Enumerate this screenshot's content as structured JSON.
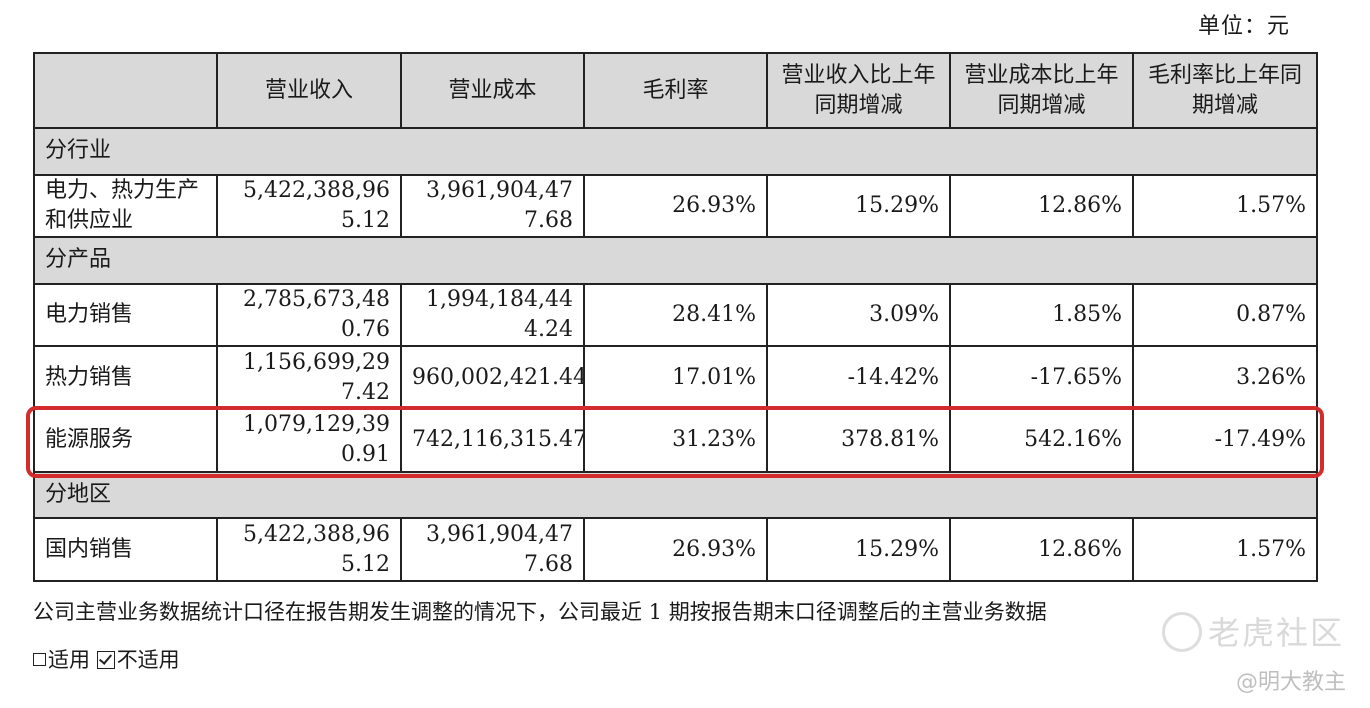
{
  "unit_label": "单位：元",
  "table": {
    "headers": [
      "",
      "营业收入",
      "营业成本",
      "毛利率",
      "营业收入比上年同期增减",
      "营业成本比上年同期增减",
      "毛利率比上年同期增减"
    ],
    "sections": [
      {
        "title": "分行业",
        "rows": [
          {
            "name": "电力、热力生产和供应业",
            "revenue": "5,422,388,965.12",
            "cost": "3,961,904,477.68",
            "margin": "26.93%",
            "rev_change": "15.29%",
            "cost_change": "12.86%",
            "margin_change": "1.57%"
          }
        ]
      },
      {
        "title": "分产品",
        "rows": [
          {
            "name": "电力销售",
            "revenue": "2,785,673,480.76",
            "cost": "1,994,184,444.24",
            "margin": "28.41%",
            "rev_change": "3.09%",
            "cost_change": "1.85%",
            "margin_change": "0.87%"
          },
          {
            "name": "热力销售",
            "revenue": "1,156,699,297.42",
            "cost": "960,002,421.44",
            "margin": "17.01%",
            "rev_change": "-14.42%",
            "cost_change": "-17.65%",
            "margin_change": "3.26%"
          },
          {
            "name": "能源服务",
            "revenue": "1,079,129,390.91",
            "cost": "742,116,315.47",
            "margin": "31.23%",
            "rev_change": "378.81%",
            "cost_change": "542.16%",
            "margin_change": "-17.49%"
          }
        ]
      },
      {
        "title": "分地区",
        "rows": [
          {
            "name": "国内销售",
            "revenue": "5,422,388,965.12",
            "cost": "3,961,904,477.68",
            "margin": "26.93%",
            "rev_change": "15.29%",
            "cost_change": "12.86%",
            "margin_change": "1.57%"
          }
        ]
      }
    ]
  },
  "highlight_color": "#d42b2b",
  "note": "公司主营业务数据统计口径在报告期发生调整的情况下，公司最近 1 期按报告期末口径调整后的主营业务数据",
  "options": {
    "applicable": "适用",
    "not_applicable": "不适用",
    "selected": "not_applicable"
  },
  "watermark": {
    "brand": "老虎社区",
    "author": "@明大教主"
  }
}
